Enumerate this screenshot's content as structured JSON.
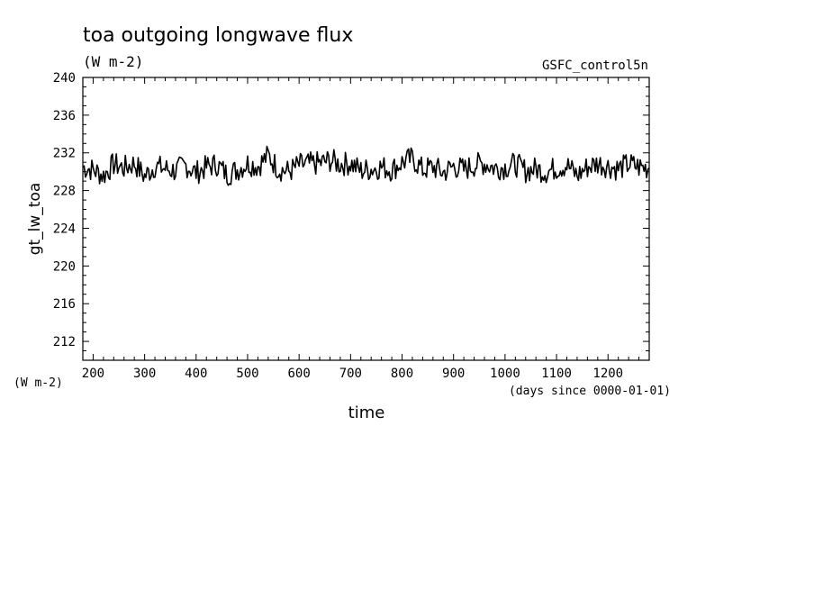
{
  "chart_data": {
    "type": "line",
    "title": "toa outgoing longwave flux",
    "units": "(W m-2)",
    "source_label": "GSFC_control5n",
    "ylabel": "gt_lw_toa",
    "ylabel_units": "(W m-2)",
    "xlabel": "time",
    "xlabel_units": "(days since 0000-01-01)",
    "xlim": [
      180,
      1280
    ],
    "ylim": [
      210,
      240
    ],
    "x_ticks": [
      200,
      300,
      400,
      500,
      600,
      700,
      800,
      900,
      1000,
      1100,
      1200
    ],
    "y_ticks": [
      212,
      216,
      220,
      224,
      228,
      232,
      236,
      240
    ],
    "grid": false,
    "series": [
      {
        "x": [
          180,
          200,
          220,
          240,
          260,
          280,
          300,
          320,
          340,
          360,
          380,
          400,
          420,
          440,
          460,
          480,
          500,
          520,
          540,
          560,
          580,
          600,
          620,
          640,
          660,
          680,
          700,
          720,
          740,
          760,
          780,
          800,
          820,
          840,
          860,
          880,
          900,
          920,
          940,
          960,
          980,
          1000,
          1020,
          1040,
          1060,
          1080,
          1100,
          1120,
          1140,
          1160,
          1180,
          1200,
          1220,
          1240,
          1260,
          1280
        ],
        "y": [
          230.5,
          230.2,
          229.6,
          230.8,
          230.4,
          230.9,
          229.5,
          230.6,
          230.3,
          230.1,
          230.7,
          229.9,
          230.5,
          230.8,
          229.7,
          230.2,
          230.9,
          230.6,
          231.7,
          230.3,
          230.0,
          230.7,
          230.8,
          230.9,
          231.2,
          230.8,
          230.9,
          230.1,
          230.3,
          230.5,
          230.2,
          231.0,
          231.4,
          230.2,
          230.5,
          229.9,
          230.6,
          230.2,
          230.7,
          230.9,
          230.4,
          230.5,
          230.8,
          230.1,
          230.3,
          230.0,
          230.4,
          230.7,
          229.6,
          230.5,
          230.9,
          230.6,
          230.3,
          230.8,
          230.5,
          230.4
        ]
      }
    ]
  }
}
